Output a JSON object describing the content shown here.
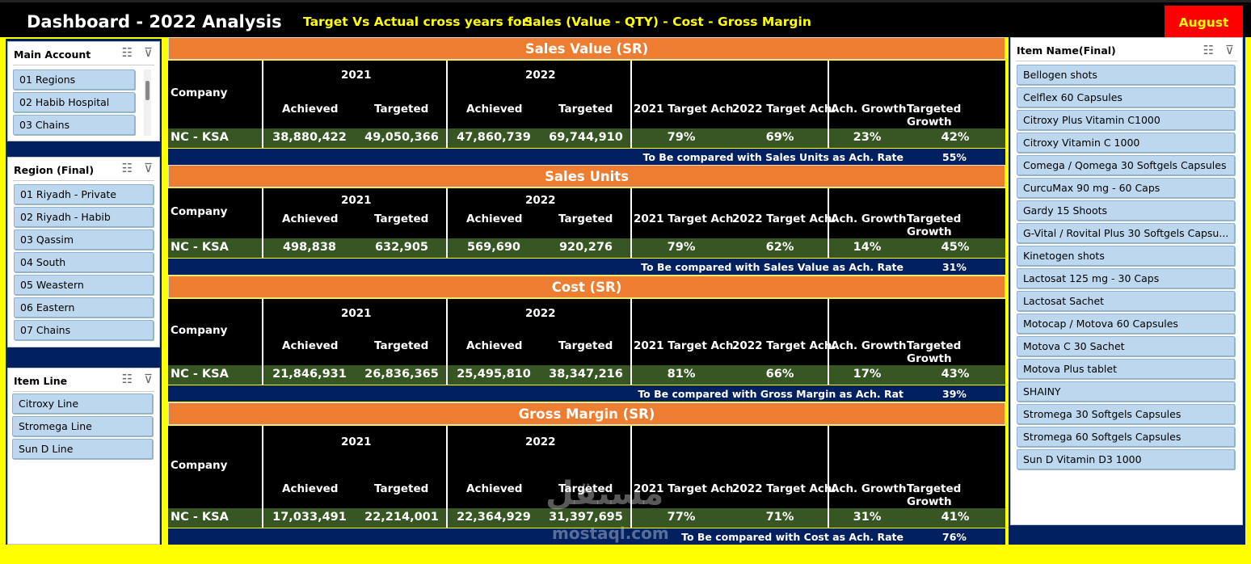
{
  "header": {
    "title": "Dashboard - 2022 Analysis",
    "subtitle_prefix": "Target Vs Actual cross years for:",
    "subtitle_metrics": "Sales (Value - QTY) - Cost - Gross Margin",
    "month": "August"
  },
  "slicers": {
    "main_account": {
      "title": "Main Account",
      "items": [
        "01 Regions",
        "02 Habib Hospital",
        "03 Chains"
      ]
    },
    "region": {
      "title": "Region (Final)",
      "items": [
        "01 Riyadh - Private",
        "02 Riyadh - Habib",
        "03 Qassim",
        "04 South",
        "05 Weastern",
        "06 Eastern",
        "07 Chains"
      ]
    },
    "item_line": {
      "title": "Item Line",
      "items": [
        "Citroxy Line",
        "Stromega Line",
        "Sun D Line"
      ]
    },
    "item_name": {
      "title": "Item Name(Final)",
      "items": [
        "Bellogen shots",
        "Celflex 60 Capsules",
        "Citroxy Plus Vitamin C1000",
        "Citroxy Vitamin C 1000",
        "Comega / Qomega 30 Softgels Capsules",
        "CurcuMax 90 mg - 60 Caps",
        "Gardy 15 Shoots",
        "G-Vital / Rovital Plus 30 Softgels Capsu...",
        "Kinetogen shots",
        "Lactosat 125 mg - 30 Caps",
        "Lactosat Sachet",
        "Motocap / Motova 60 Capsules",
        "Motova C 30 Sachet",
        "Motova Plus tablet",
        "SHAINY",
        "Stromega 30 Softgels Capsules",
        "Stromega 60 Softgels Capsules",
        "Sun D Vitamin D3 1000"
      ]
    }
  },
  "columns": {
    "company": "Company",
    "year1": "2021",
    "year2": "2022",
    "achieved": "Achieved",
    "targeted": "Targeted",
    "t2021": "2021 Target Ach.",
    "t2022": "2022 Target Ach.",
    "ach_growth": "Ach. Growth",
    "targeted_growth": "Targeted Growth"
  },
  "sections": [
    {
      "title": "Sales Value (SR)",
      "company": "NC - KSA",
      "a2021": "38,880,422",
      "t2021": "49,050,366",
      "a2022": "47,860,739",
      "t2022": "69,744,910",
      "p2021": "79%",
      "p2022": "69%",
      "ach_growth": "23%",
      "targeted_growth": "42%",
      "note": "To Be compared with Sales Units as Ach. Rate",
      "note_value": "55%"
    },
    {
      "title": "Sales Units",
      "company": "NC - KSA",
      "a2021": "498,838",
      "t2021": "632,905",
      "a2022": "569,690",
      "t2022": "920,276",
      "p2021": "79%",
      "p2022": "62%",
      "ach_growth": "14%",
      "targeted_growth": "45%",
      "note": "To Be compared with Sales Value as Ach. Rate",
      "note_value": "31%"
    },
    {
      "title": "Cost (SR)",
      "company": "NC - KSA",
      "a2021": "21,846,931",
      "t2021": "26,836,365",
      "a2022": "25,495,810",
      "t2022": "38,347,216",
      "p2021": "81%",
      "p2022": "66%",
      "ach_growth": "17%",
      "targeted_growth": "43%",
      "note": "To Be compared with Gross Margin as Ach. Rat",
      "note_value": "39%"
    },
    {
      "title": "Gross Margin (SR)",
      "company": "NC - KSA",
      "a2021": "17,033,491",
      "t2021": "22,214,001",
      "a2022": "22,364,929",
      "t2022": "31,397,695",
      "p2021": "77%",
      "p2022": "71%",
      "ach_growth": "31%",
      "targeted_growth": "41%",
      "note": "To Be compared with Cost as Ach. Rate",
      "note_value": "76%"
    }
  ],
  "icons": {
    "multi_select": "multi-select-icon",
    "clear_filter": "clear-filter-icon"
  },
  "watermark": {
    "arabic": "مستقل",
    "latin": "mostaql.com"
  }
}
